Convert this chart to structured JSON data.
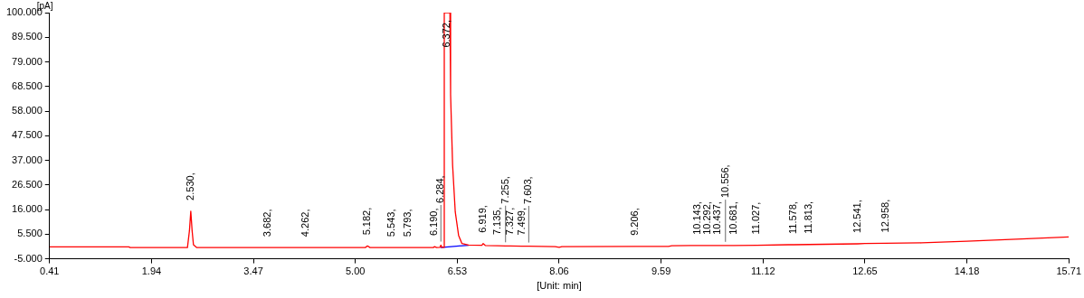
{
  "chart_data": {
    "type": "line",
    "xlabel": "[Unit: min]",
    "ylabel": "[pA]",
    "grid": false,
    "legend": false,
    "marker": "none",
    "line_style": "solid",
    "xlim": [
      0.41,
      15.71
    ],
    "xticks": [
      0.41,
      1.94,
      3.47,
      {
        "value": 5.0,
        "label": "5.00"
      },
      6.53,
      8.06,
      9.59,
      11.12,
      12.65,
      14.18,
      15.71
    ],
    "ylim": [
      -5,
      100
    ],
    "yticks": [
      {
        "value": -5,
        "label": "-5.000"
      },
      {
        "value": 5.5,
        "label": "5.500"
      },
      {
        "value": 16,
        "label": "16.000"
      },
      {
        "value": 26.5,
        "label": "26.500"
      },
      {
        "value": 37,
        "label": "37.000"
      },
      {
        "value": 47.5,
        "label": "47.500"
      },
      {
        "value": 58,
        "label": "58.000"
      },
      {
        "value": 68.5,
        "label": "68.500"
      },
      {
        "value": 79,
        "label": "79.000"
      },
      {
        "value": 89.5,
        "label": "89.500"
      },
      {
        "value": 100,
        "label": "100.000"
      }
    ],
    "series": [
      {
        "color": "#ff0000",
        "x": [
          0.41,
          1.6,
          1.62,
          2.48,
          2.51,
          2.53,
          2.55,
          2.57,
          2.62,
          3.682,
          4.262,
          5.15,
          5.182,
          5.22,
          5.543,
          5.793,
          6.17,
          6.19,
          6.22,
          6.27,
          6.284,
          6.3,
          6.33,
          6.335,
          6.372,
          6.42,
          6.43,
          6.46,
          6.5,
          6.55,
          6.6,
          6.7,
          6.9,
          6.919,
          6.95,
          7.135,
          7.255,
          7.327,
          7.499,
          7.603,
          8.0,
          8.06,
          8.1,
          9.206,
          9.7,
          9.75,
          10.143,
          10.292,
          10.437,
          10.556,
          10.681,
          11.027,
          11.5,
          11.578,
          11.813,
          12.541,
          12.65,
          12.958,
          13.5,
          14.18,
          15.0,
          15.71
        ],
        "values": [
          0.1,
          0.1,
          -0.2,
          -0.2,
          7,
          15.3,
          7,
          1,
          -0.2,
          -0.2,
          -0.2,
          -0.2,
          0.5,
          -0.2,
          -0.2,
          -0.2,
          -0.2,
          0.2,
          -0.2,
          -0.1,
          0.8,
          -0.1,
          -0.1,
          100,
          100,
          100,
          65,
          35,
          15,
          5,
          1.5,
          0.9,
          0.8,
          1.5,
          0.7,
          0.6,
          0.5,
          0.5,
          0.4,
          0.4,
          0.2,
          -0.1,
          0.2,
          0.3,
          0.3,
          0.6,
          0.7,
          0.7,
          0.7,
          0.7,
          0.7,
          0.8,
          1.0,
          1.0,
          1.1,
          1.4,
          1.5,
          1.6,
          1.8,
          2.5,
          3.5,
          4.3
        ]
      },
      {
        "color": "#0000ff",
        "x": [
          6.28,
          6.7
        ],
        "values": [
          -0.2,
          0.8
        ]
      }
    ],
    "annotations": [
      {
        "text": "2.530,",
        "x": 2.53,
        "y": 15.3
      },
      {
        "text": "3.682,",
        "x": 3.682,
        "y": -0.2
      },
      {
        "text": "4.262,",
        "x": 4.262,
        "y": -0.2
      },
      {
        "text": "5.182,",
        "x": 5.182,
        "y": 0.5
      },
      {
        "text": "5.543,",
        "x": 5.543,
        "y": -0.2
      },
      {
        "text": "5.793,",
        "x": 5.793,
        "y": -0.2
      },
      {
        "text": "6.190,",
        "x": 6.19,
        "y": 0.2
      },
      {
        "text": "6.284,",
        "x": 6.284,
        "y": 0.8
      },
      {
        "text": "6.372,",
        "x": 6.372,
        "y": 100
      },
      {
        "text": "6.919,",
        "x": 6.919,
        "y": 1.5
      },
      {
        "text": "7.135,",
        "x": 7.135,
        "y": 0.6
      },
      {
        "text": "7.255,",
        "x": 7.255,
        "y": 0.5
      },
      {
        "text": "7.327,",
        "x": 7.327,
        "y": 0.5
      },
      {
        "text": "7.499,",
        "x": 7.499,
        "y": 0.4
      },
      {
        "text": "7.603,",
        "x": 7.603,
        "y": 0.4
      },
      {
        "text": "9.206,",
        "x": 9.206,
        "y": 0.3
      },
      {
        "text": "10.143,",
        "x": 10.143,
        "y": 0.7
      },
      {
        "text": "10.292,",
        "x": 10.292,
        "y": 0.7
      },
      {
        "text": "10.437,",
        "x": 10.437,
        "y": 0.7
      },
      {
        "text": "10.556,",
        "x": 10.556,
        "y": 0.7
      },
      {
        "text": "10.681,",
        "x": 10.681,
        "y": 0.7
      },
      {
        "text": "11.027,",
        "x": 11.027,
        "y": 0.8
      },
      {
        "text": "11.578,",
        "x": 11.578,
        "y": 1.0
      },
      {
        "text": "11.813,",
        "x": 11.813,
        "y": 1.1
      },
      {
        "text": "12.541,",
        "x": 12.541,
        "y": 1.4
      },
      {
        "text": "12.958,",
        "x": 12.958,
        "y": 1.6
      }
    ]
  }
}
